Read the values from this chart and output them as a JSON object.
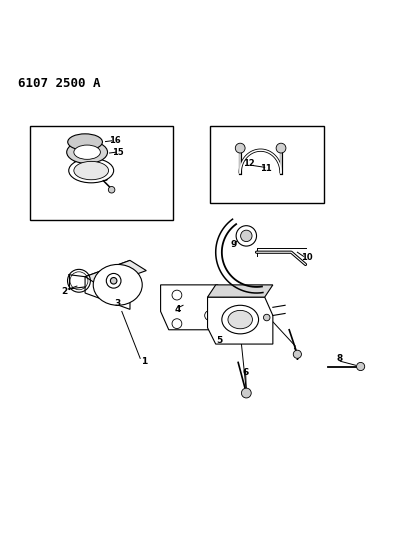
{
  "title": "6107 2500 A",
  "background_color": "#ffffff",
  "line_color": "#000000",
  "figsize": [
    4.11,
    5.33
  ],
  "dpi": 100
}
